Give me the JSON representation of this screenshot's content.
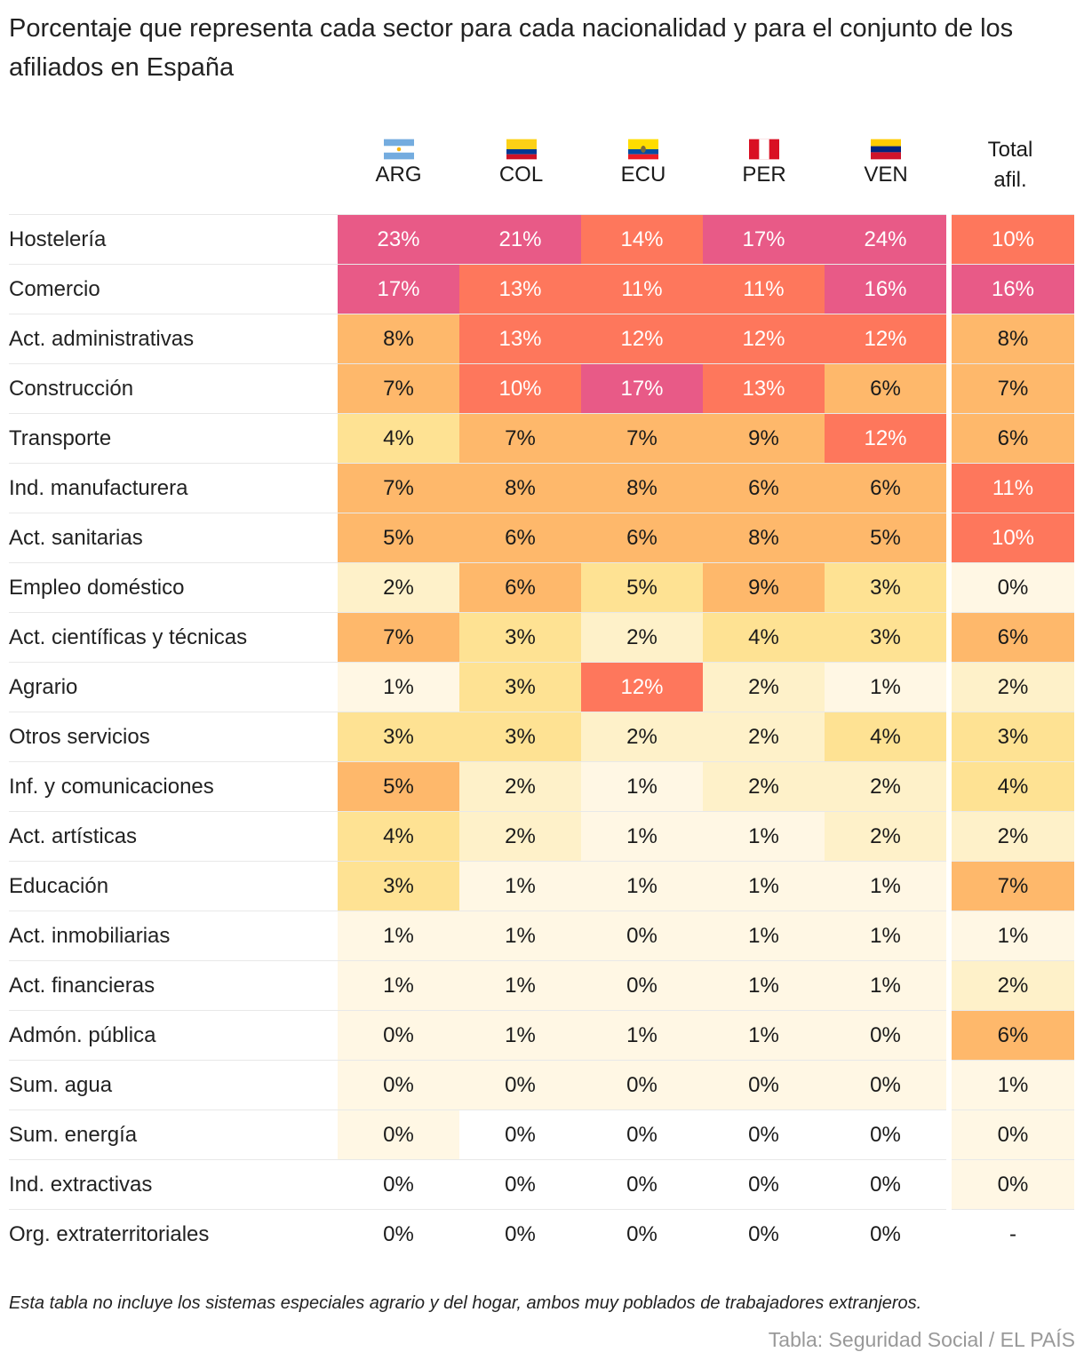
{
  "title": "Porcentaje que representa cada sector para cada nacionalidad y para el conjunto de los afiliados en España",
  "colors": {
    "0": "#ffffff",
    "1": "#fff7e4",
    "2": "#fef1c9",
    "3": "#fee293",
    "4": "#feb86b",
    "5": "#fe775c",
    "6": "#e85a87"
  },
  "chart_data": {
    "type": "table",
    "columns": [
      {
        "code": "ARG",
        "flag": "argentina-flag-icon"
      },
      {
        "code": "COL",
        "flag": "colombia-flag-icon"
      },
      {
        "code": "ECU",
        "flag": "ecuador-flag-icon"
      },
      {
        "code": "PER",
        "flag": "peru-flag-icon"
      },
      {
        "code": "VEN",
        "flag": "venezuela-flag-icon"
      },
      {
        "code": "Total afil.",
        "flag": ""
      }
    ],
    "rows": [
      {
        "sector": "Hostelería",
        "values": [
          "23%",
          "21%",
          "14%",
          "17%",
          "24%",
          "10%"
        ],
        "shade": [
          6,
          6,
          5,
          6,
          6,
          5
        ]
      },
      {
        "sector": "Comercio",
        "values": [
          "17%",
          "13%",
          "11%",
          "11%",
          "16%",
          "16%"
        ],
        "shade": [
          6,
          5,
          5,
          5,
          6,
          6
        ]
      },
      {
        "sector": "Act. administrativas",
        "values": [
          "8%",
          "13%",
          "12%",
          "12%",
          "12%",
          "8%"
        ],
        "shade": [
          4,
          5,
          5,
          5,
          5,
          4
        ]
      },
      {
        "sector": "Construcción",
        "values": [
          "7%",
          "10%",
          "17%",
          "13%",
          "6%",
          "7%"
        ],
        "shade": [
          4,
          5,
          6,
          5,
          4,
          4
        ]
      },
      {
        "sector": "Transporte",
        "values": [
          "4%",
          "7%",
          "7%",
          "9%",
          "12%",
          "6%"
        ],
        "shade": [
          3,
          4,
          4,
          4,
          5,
          4
        ]
      },
      {
        "sector": "Ind. manufacturera",
        "values": [
          "7%",
          "8%",
          "8%",
          "6%",
          "6%",
          "11%"
        ],
        "shade": [
          4,
          4,
          4,
          4,
          4,
          5
        ]
      },
      {
        "sector": "Act. sanitarias",
        "values": [
          "5%",
          "6%",
          "6%",
          "8%",
          "5%",
          "10%"
        ],
        "shade": [
          4,
          4,
          4,
          4,
          4,
          5
        ]
      },
      {
        "sector": "Empleo doméstico",
        "values": [
          "2%",
          "6%",
          "5%",
          "9%",
          "3%",
          "0%"
        ],
        "shade": [
          2,
          4,
          3,
          4,
          3,
          1
        ]
      },
      {
        "sector": "Act. científicas y técnicas",
        "values": [
          "7%",
          "3%",
          "2%",
          "4%",
          "3%",
          "6%"
        ],
        "shade": [
          4,
          3,
          2,
          3,
          3,
          4
        ]
      },
      {
        "sector": "Agrario",
        "values": [
          "1%",
          "3%",
          "12%",
          "2%",
          "1%",
          "2%"
        ],
        "shade": [
          1,
          3,
          5,
          2,
          1,
          2
        ]
      },
      {
        "sector": "Otros servicios",
        "values": [
          "3%",
          "3%",
          "2%",
          "2%",
          "4%",
          "3%"
        ],
        "shade": [
          3,
          3,
          2,
          2,
          3,
          3
        ]
      },
      {
        "sector": "Inf. y comunicaciones",
        "values": [
          "5%",
          "2%",
          "1%",
          "2%",
          "2%",
          "4%"
        ],
        "shade": [
          4,
          2,
          1,
          2,
          2,
          3
        ]
      },
      {
        "sector": "Act. artísticas",
        "values": [
          "4%",
          "2%",
          "1%",
          "1%",
          "2%",
          "2%"
        ],
        "shade": [
          3,
          2,
          1,
          1,
          2,
          2
        ]
      },
      {
        "sector": "Educación",
        "values": [
          "3%",
          "1%",
          "1%",
          "1%",
          "1%",
          "7%"
        ],
        "shade": [
          3,
          1,
          1,
          1,
          1,
          4
        ]
      },
      {
        "sector": "Act. inmobiliarias",
        "values": [
          "1%",
          "1%",
          "0%",
          "1%",
          "1%",
          "1%"
        ],
        "shade": [
          1,
          1,
          1,
          1,
          1,
          1
        ]
      },
      {
        "sector": "Act. financieras",
        "values": [
          "1%",
          "1%",
          "0%",
          "1%",
          "1%",
          "2%"
        ],
        "shade": [
          1,
          1,
          1,
          1,
          1,
          2
        ]
      },
      {
        "sector": "Admón. pública",
        "values": [
          "0%",
          "1%",
          "1%",
          "1%",
          "0%",
          "6%"
        ],
        "shade": [
          1,
          1,
          1,
          1,
          1,
          4
        ]
      },
      {
        "sector": "Sum. agua",
        "values": [
          "0%",
          "0%",
          "0%",
          "0%",
          "0%",
          "1%"
        ],
        "shade": [
          1,
          1,
          1,
          1,
          1,
          1
        ]
      },
      {
        "sector": "Sum. energía",
        "values": [
          "0%",
          "0%",
          "0%",
          "0%",
          "0%",
          "0%"
        ],
        "shade": [
          1,
          0,
          0,
          0,
          0,
          1
        ]
      },
      {
        "sector": "Ind. extractivas",
        "values": [
          "0%",
          "0%",
          "0%",
          "0%",
          "0%",
          "0%"
        ],
        "shade": [
          0,
          0,
          0,
          0,
          0,
          1
        ]
      },
      {
        "sector": "Org. extraterritoriales",
        "values": [
          "0%",
          "0%",
          "0%",
          "0%",
          "0%",
          "-"
        ],
        "shade": [
          0,
          0,
          0,
          0,
          0,
          0
        ]
      }
    ]
  },
  "note": "Esta tabla no incluye los sistemas especiales agrario y del hogar, ambos muy poblados de trabajadores extranjeros.",
  "source": "Tabla: Seguridad Social / EL PAÍS"
}
